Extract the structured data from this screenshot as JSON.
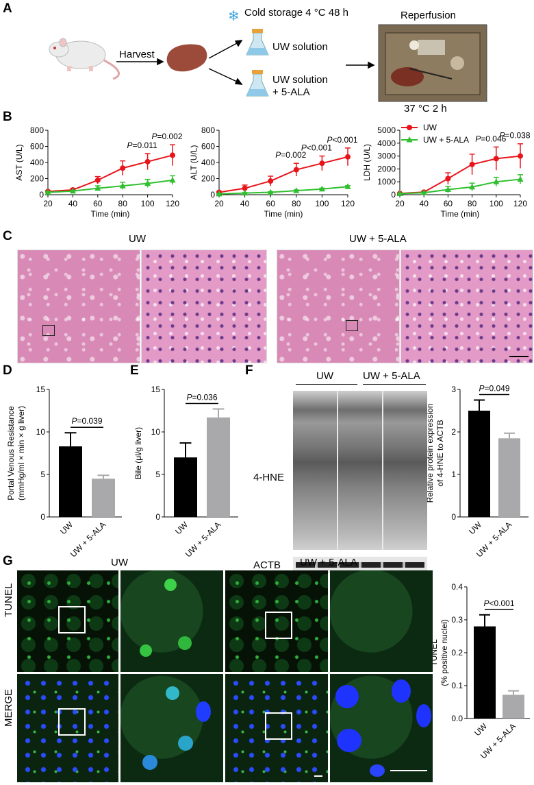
{
  "panels": {
    "A": "A",
    "B": "B",
    "C": "C",
    "D": "D",
    "E": "E",
    "F": "F",
    "G": "G"
  },
  "panelA": {
    "harvest": "Harvest",
    "cold_storage": "Cold storage 4 °C 48 h",
    "uw": "UW solution",
    "uw_ala_1": "UW solution",
    "uw_ala_2": "+ 5-ALA",
    "reperfusion": "Reperfusion",
    "temp": "37 °C 2 h",
    "colors": {
      "flask_blue": "#8ec9e8",
      "liver": "#9c4a3a",
      "snow": "#3aa0dc"
    }
  },
  "panelB": {
    "legend_uw": "UW",
    "legend_ala": "UW + 5-ALA",
    "xlabel": "Time (min)"
  },
  "panelC": {
    "uw": "UW",
    "uw_ala": "UW + 5-ALA"
  },
  "panelF": {
    "uw": "UW",
    "uw_ala": "UW + 5-ALA",
    "hne": "4-HNE",
    "actb": "ACTB"
  },
  "panelG": {
    "uw": "UW",
    "uw_ala": "UW + 5-ALA",
    "tunel": "TUNEL",
    "merge": "MERGE"
  },
  "colors": {
    "uw_red": "#e8141b",
    "ala_green": "#2fbf2f",
    "bar_black": "#000000",
    "bar_gray": "#a9a9ab"
  },
  "chart_data": [
    {
      "type": "line",
      "x": [
        20,
        40,
        60,
        80,
        100,
        120
      ],
      "xlabel": "Time (min)",
      "ylabel": "AST (U/L)",
      "ylim": [
        0,
        800
      ],
      "yticks": [
        0,
        200,
        400,
        600,
        800
      ],
      "series": [
        {
          "name": "UW",
          "values": [
            40,
            60,
            180,
            330,
            410,
            490
          ],
          "err": [
            10,
            15,
            45,
            90,
            100,
            130
          ]
        },
        {
          "name": "UW + 5-ALA",
          "values": [
            30,
            45,
            80,
            110,
            140,
            180
          ],
          "err": [
            8,
            10,
            30,
            45,
            50,
            55
          ]
        }
      ],
      "annotations": [
        {
          "x": 100,
          "text": "P=0.011"
        },
        {
          "x": 120,
          "text": "P=0.002"
        }
      ]
    },
    {
      "type": "line",
      "x": [
        20,
        40,
        60,
        80,
        100,
        120
      ],
      "xlabel": "Time (min)",
      "ylabel": "ALT (U/L)",
      "ylim": [
        0,
        800
      ],
      "yticks": [
        0,
        200,
        400,
        600,
        800
      ],
      "series": [
        {
          "name": "UW",
          "values": [
            30,
            80,
            170,
            310,
            390,
            470
          ],
          "err": [
            10,
            40,
            60,
            80,
            90,
            110
          ]
        },
        {
          "name": "UW + 5-ALA",
          "values": [
            10,
            20,
            30,
            50,
            70,
            100
          ],
          "err": [
            5,
            6,
            8,
            10,
            12,
            12
          ]
        }
      ],
      "annotations": [
        {
          "x": 80,
          "text": "P=0.002"
        },
        {
          "x": 100,
          "text": "P<0.001"
        },
        {
          "x": 120,
          "text": "P<0.001"
        }
      ]
    },
    {
      "type": "line",
      "x": [
        20,
        40,
        60,
        80,
        100,
        120
      ],
      "xlabel": "Time (min)",
      "ylabel": "LDH (U/L)",
      "ylim": [
        0,
        5000
      ],
      "yticks": [
        0,
        1000,
        2000,
        3000,
        4000,
        5000
      ],
      "series": [
        {
          "name": "UW",
          "values": [
            100,
            200,
            1250,
            2350,
            2800,
            3000
          ],
          "err": [
            50,
            80,
            450,
            800,
            900,
            950
          ]
        },
        {
          "name": "UW + 5-ALA",
          "values": [
            80,
            150,
            400,
            600,
            1000,
            1200
          ],
          "err": [
            40,
            60,
            250,
            300,
            350,
            350
          ]
        }
      ],
      "annotations": [
        {
          "x": 100,
          "text": "P=0.046"
        },
        {
          "x": 120,
          "text": "P=0.038"
        }
      ]
    },
    {
      "type": "bar",
      "categories": [
        "UW",
        "UW + 5-ALA"
      ],
      "values": [
        8.3,
        4.5
      ],
      "err": [
        1.6,
        0.4
      ],
      "ylabel_1": "Portal Venous Resistance",
      "ylabel_2": "(mmHg/ml × min × g liver)",
      "ylim": [
        0,
        15
      ],
      "yticks": [
        0,
        5,
        10,
        15
      ],
      "annotation": "P=0.039"
    },
    {
      "type": "bar",
      "categories": [
        "UW",
        "UW + 5-ALA"
      ],
      "values": [
        7.0,
        11.7
      ],
      "err": [
        1.7,
        1.0
      ],
      "ylabel": "Bile (μl/g liver)",
      "ylim": [
        0,
        15
      ],
      "yticks": [
        0,
        5,
        10,
        15
      ],
      "annotation": "P=0.036"
    },
    {
      "type": "bar",
      "categories": [
        "UW",
        "UW + 5-ALA"
      ],
      "values": [
        2.5,
        1.85
      ],
      "err": [
        0.25,
        0.12
      ],
      "ylabel_1": "Relative protein expression",
      "ylabel_2": "of 4-HNE to ACTB",
      "ylim": [
        0,
        3
      ],
      "yticks": [
        0,
        1,
        2,
        3
      ],
      "annotation": "P=0.049"
    },
    {
      "type": "bar",
      "categories": [
        "UW",
        "UW + 5-ALA"
      ],
      "values": [
        0.28,
        0.072
      ],
      "err": [
        0.035,
        0.012
      ],
      "ylabel_1": "TUNEL",
      "ylabel_2": "(% positive nuclei)",
      "ylim": [
        0,
        0.4
      ],
      "yticks": [
        0.0,
        0.1,
        0.2,
        0.3,
        0.4
      ],
      "annotation": "P<0.001"
    }
  ]
}
